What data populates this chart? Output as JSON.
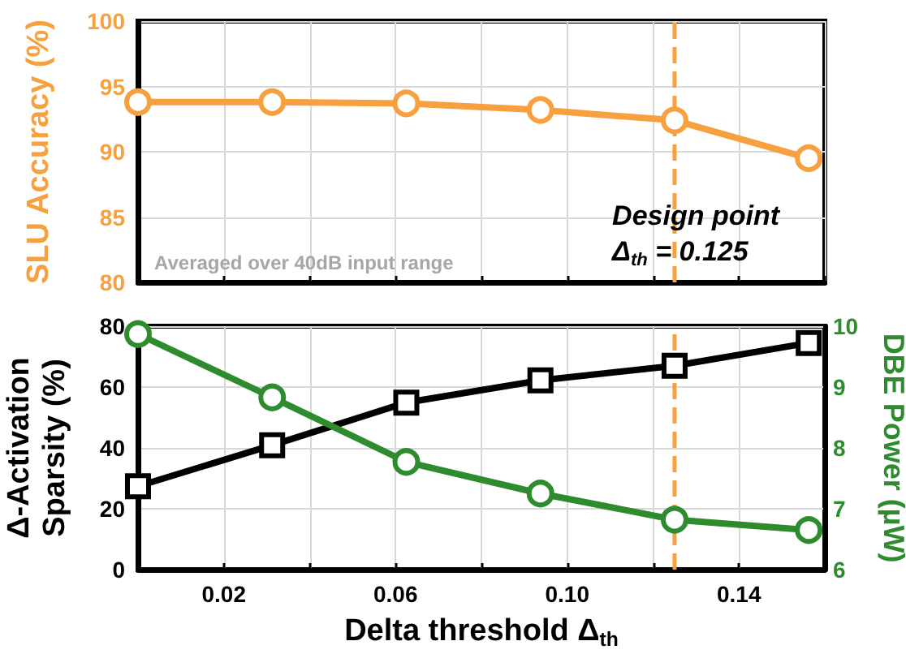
{
  "chart_data": [
    {
      "type": "line",
      "ylabel": "SLU Accuracy (%)",
      "x": [
        0,
        0.03125,
        0.0625,
        0.09375,
        0.125,
        0.15625
      ],
      "series": [
        {
          "color": "#f7a03f",
          "values": [
            93.8,
            93.8,
            93.7,
            93.2,
            92.4,
            89.5
          ],
          "marker": "circle"
        }
      ],
      "xlim": [
        0,
        0.16
      ],
      "xticks": [
        {
          "value": 0,
          "label": null
        },
        {
          "value": 0.02,
          "label": null
        },
        {
          "value": 0.04,
          "label": null
        },
        {
          "value": 0.06,
          "label": null
        },
        {
          "value": 0.08,
          "label": null
        },
        {
          "value": 0.1,
          "label": null
        },
        {
          "value": 0.12,
          "label": null
        },
        {
          "value": 0.14,
          "label": null
        }
      ],
      "ylim": [
        80,
        100
      ],
      "yticks": [
        80,
        85,
        90,
        95,
        100
      ],
      "tick_labels": "y",
      "grid": true,
      "ref_lines": [
        {
          "axis": "x",
          "value": 0.125,
          "color": "#f7a03f",
          "line_style": "dashed"
        }
      ],
      "annotations": [
        "Design point\nΔ$_{th}$ = 0.125",
        "Averaged over 40dB input range"
      ]
    },
    {
      "type": "line",
      "xlabel": "Delta threshold Δ$_{th}$",
      "ylabel": "Δ-Activation\nSparsity (%)",
      "y2label": "DBE Power (µW)",
      "x": [
        0,
        0.03125,
        0.0625,
        0.09375,
        0.125,
        0.15625
      ],
      "series": [
        {
          "color": "#000000",
          "values": [
            27.4,
            40.9,
            54.9,
            62.2,
            67.0,
            74.5
          ],
          "marker": "square"
        },
        {
          "color": "#2e8b2e",
          "values": [
            9.87,
            8.83,
            7.77,
            7.25,
            6.82,
            6.65
          ],
          "marker": "circle",
          "axis": "y2"
        }
      ],
      "xlim": [
        0,
        0.16
      ],
      "xticks": [
        {
          "value": 0,
          "label": null
        },
        0.02,
        {
          "value": 0.04,
          "label": null
        },
        0.06,
        {
          "value": 0.08,
          "label": null
        },
        {
          "value": 0.1,
          "label": "0.10"
        },
        {
          "value": 0.12,
          "label": null
        },
        0.14
      ],
      "ylim": [
        0,
        80
      ],
      "yticks": [
        0,
        20,
        40,
        60,
        80
      ],
      "y2lim": [
        6,
        10
      ],
      "y2ticks": [
        6,
        7,
        8,
        9,
        10
      ],
      "grid": true,
      "ref_lines": [
        {
          "axis": "x",
          "value": 0.125,
          "color": "#f7a03f",
          "line_style": "dashed"
        }
      ]
    }
  ]
}
